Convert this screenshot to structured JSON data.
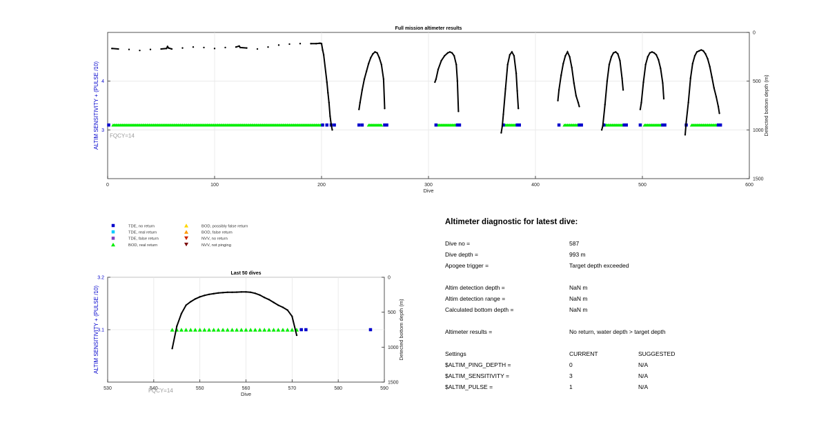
{
  "colors": {
    "tde_no_return": "#0000cc",
    "tde_real_return": "#00ccff",
    "tde_false_return": "#7f3fbf",
    "bod_real_return": "#00ee00",
    "bod_possibly_false": "#ffd700",
    "bod_false_return": "#ff9900",
    "nvv_no_return": "#cc2200",
    "nvv_not_pinging": "#7a0000",
    "left_axis": "#0000cc",
    "fqcy_text": "#999999",
    "depth_line": "#000000"
  },
  "chart_data": [
    {
      "type": "scatter",
      "title": "Full mission altimeter results",
      "xlabel": "Dive",
      "ylabel": "ALTIM SENSITIVITY + (PULSE /10)",
      "y2label": "Detected bottom depth (m)",
      "xlim": [
        0,
        600
      ],
      "ylim": [
        2,
        5
      ],
      "y2lim": [
        0,
        1500
      ],
      "y2_reversed": true,
      "grid": true,
      "xticks": [
        "0",
        "100",
        "200",
        "300",
        "400",
        "500",
        "600"
      ],
      "yticks": [
        "3",
        "4"
      ],
      "y2ticks": [
        "0",
        "500",
        "1000",
        "1500"
      ],
      "annotation": "FQCY=14",
      "series": [
        {
          "name": "BOD, real return",
          "marker": "triangle-up",
          "color_key": "bod_real_return",
          "segments": [
            [
              5,
              200
            ],
            [
              244,
              256
            ],
            [
              309,
              326
            ],
            [
              372,
              382
            ],
            [
              427,
              440
            ],
            [
              466,
              482
            ],
            [
              502,
              518
            ],
            [
              546,
              570
            ]
          ],
          "y": 3.1
        },
        {
          "name": "TDE, no return",
          "marker": "square",
          "color_key": "tde_no_return",
          "x": [
            1,
            201,
            205,
            209,
            212,
            235,
            238,
            259,
            261,
            307,
            327,
            329,
            370,
            383,
            385,
            422,
            441,
            443,
            464,
            483,
            485,
            498,
            519,
            521,
            541,
            571,
            573
          ],
          "y": 3.1
        },
        {
          "name": "Detected bottom depth",
          "axis": "right",
          "line": true,
          "color_key": "depth_line",
          "x": [
            4,
            10,
            20,
            30,
            40,
            50,
            55,
            56,
            57,
            60,
            70,
            80,
            90,
            100,
            110,
            120,
            123,
            124,
            130,
            140,
            150,
            160,
            170,
            180,
            190,
            195,
            198,
            199,
            200,
            201,
            202,
            205,
            206,
            207,
            208,
            209,
            210,
            235,
            236,
            238,
            240,
            242,
            244,
            246,
            248,
            250,
            252,
            254,
            256,
            258,
            259,
            306,
            307,
            309,
            312,
            315,
            318,
            320,
            322,
            324,
            326,
            327,
            328,
            368,
            369,
            370,
            372,
            374,
            376,
            378,
            380,
            382,
            383,
            384,
            421,
            422,
            424,
            426,
            428,
            430,
            432,
            434,
            436,
            438,
            440,
            441,
            462,
            463,
            465,
            467,
            469,
            471,
            473,
            475,
            477,
            479,
            481,
            482,
            498,
            499,
            501,
            503,
            505,
            507,
            509,
            511,
            513,
            515,
            517,
            519,
            520,
            540,
            541,
            543,
            545,
            547,
            549,
            551,
            553,
            555,
            557,
            559,
            561,
            563,
            565,
            567,
            569,
            571,
            572
          ],
          "y": [
            165,
            170,
            175,
            185,
            175,
            170,
            165,
            145,
            160,
            170,
            160,
            150,
            155,
            165,
            155,
            150,
            140,
            155,
            160,
            170,
            150,
            130,
            120,
            115,
            115,
            115,
            112,
            112,
            115,
            180,
            230,
            510,
            620,
            720,
            860,
            940,
            1000,
            790,
            720,
            590,
            480,
            400,
            320,
            260,
            220,
            200,
            210,
            260,
            330,
            480,
            780,
            510,
            480,
            380,
            290,
            240,
            210,
            200,
            210,
            240,
            330,
            500,
            810,
            1030,
            960,
            840,
            580,
            330,
            230,
            200,
            240,
            420,
            600,
            780,
            700,
            590,
            440,
            320,
            240,
            200,
            250,
            360,
            520,
            650,
            720,
            760,
            1000,
            960,
            740,
            500,
            330,
            250,
            210,
            200,
            220,
            290,
            470,
            590,
            790,
            720,
            510,
            330,
            250,
            210,
            200,
            210,
            230,
            280,
            370,
            520,
            680,
            1050,
            920,
            720,
            470,
            320,
            240,
            200,
            190,
            180,
            190,
            220,
            270,
            350,
            460,
            570,
            660,
            760,
            830
          ]
        }
      ]
    },
    {
      "type": "scatter",
      "title": "Last 50 dives",
      "xlabel": "Dive",
      "ylabel": "ALTIM SENSITIVITY + (PULSE /10)",
      "y2label": "Detected bottom depth (m)",
      "xlim": [
        530,
        590
      ],
      "ylim": [
        3.0,
        3.2
      ],
      "y2lim": [
        0,
        1500
      ],
      "y2_reversed": true,
      "grid": true,
      "xticks": [
        "530",
        "540",
        "550",
        "560",
        "570",
        "580",
        "590"
      ],
      "yticks": [
        "3.1",
        "3.2"
      ],
      "y2ticks": [
        "0",
        "500",
        "1000",
        "1500"
      ],
      "annotation": "FQCY=14",
      "series": [
        {
          "name": "BOD, real return",
          "marker": "triangle-up",
          "color_key": "bod_real_return",
          "x": [
            544,
            545,
            546,
            547,
            548,
            549,
            550,
            551,
            552,
            553,
            554,
            555,
            556,
            557,
            558,
            559,
            560,
            561,
            562,
            563,
            564,
            565,
            566,
            567,
            568,
            569,
            570,
            571
          ],
          "y": 3.1
        },
        {
          "name": "TDE, no return",
          "marker": "square",
          "color_key": "tde_no_return",
          "x": [
            572,
            573,
            587
          ],
          "y": 3.1
        },
        {
          "name": "Detected bottom depth",
          "axis": "right",
          "line": true,
          "color_key": "depth_line",
          "x": [
            544,
            545,
            546,
            547,
            548,
            549,
            550,
            551,
            552,
            553,
            554,
            555,
            556,
            557,
            558,
            559,
            560,
            561,
            562,
            563,
            564,
            565,
            566,
            567,
            568,
            569,
            570,
            571
          ],
          "y": [
            1020,
            700,
            520,
            400,
            350,
            310,
            280,
            260,
            245,
            235,
            225,
            220,
            215,
            215,
            213,
            210,
            210,
            215,
            230,
            255,
            290,
            320,
            360,
            400,
            430,
            470,
            560,
            830
          ]
        }
      ]
    }
  ],
  "legend": [
    {
      "label": "TDE, no return",
      "marker": "square",
      "color_key": "tde_no_return"
    },
    {
      "label": "TDE, real return",
      "marker": "square",
      "color_key": "tde_real_return"
    },
    {
      "label": "TDE, false return",
      "marker": "square",
      "color_key": "tde_false_return"
    },
    {
      "label": "BOD, real return",
      "marker": "triangle-up",
      "color_key": "bod_real_return"
    },
    {
      "label": "BOD, possibly false return",
      "marker": "triangle-up",
      "color_key": "bod_possibly_false"
    },
    {
      "label": "BOD, false return",
      "marker": "triangle-up",
      "color_key": "bod_false_return"
    },
    {
      "label": "NVV, no return",
      "marker": "triangle-down",
      "color_key": "nvv_no_return"
    },
    {
      "label": "NVV, not pinging",
      "marker": "triangle-down",
      "color_key": "nvv_not_pinging"
    }
  ],
  "diagnostic": {
    "title": "Altimeter diagnostic for latest dive:",
    "dive_no_label": "Dive no =",
    "dive_no_value": "587",
    "dive_depth_label": "Dive depth =",
    "dive_depth_value": "993 m",
    "apogee_label": "Apogee trigger =",
    "apogee_value": "Target depth exceeded",
    "det_depth_label": "Altim detection depth =",
    "det_depth_value": "NaN m",
    "det_range_label": "Altim detection range =",
    "det_range_value": "NaN m",
    "calc_bottom_label": "Calculated bottom depth =",
    "calc_bottom_value": "NaN m",
    "results_label": "Altimeter results =",
    "results_value": "No return, water depth > target depth",
    "settings_label": "Settings",
    "current_label": "CURRENT",
    "suggested_label": "SUGGESTED",
    "ping_depth_label": "$ALTIM_PING_DEPTH =",
    "ping_depth_current": "0",
    "ping_depth_suggested": "N/A",
    "sensitivity_label": "$ALTIM_SENSITIVITY =",
    "sensitivity_current": "3",
    "sensitivity_suggested": "N/A",
    "pulse_label": "$ALTIM_PULSE =",
    "pulse_current": "1",
    "pulse_suggested": "N/A"
  }
}
